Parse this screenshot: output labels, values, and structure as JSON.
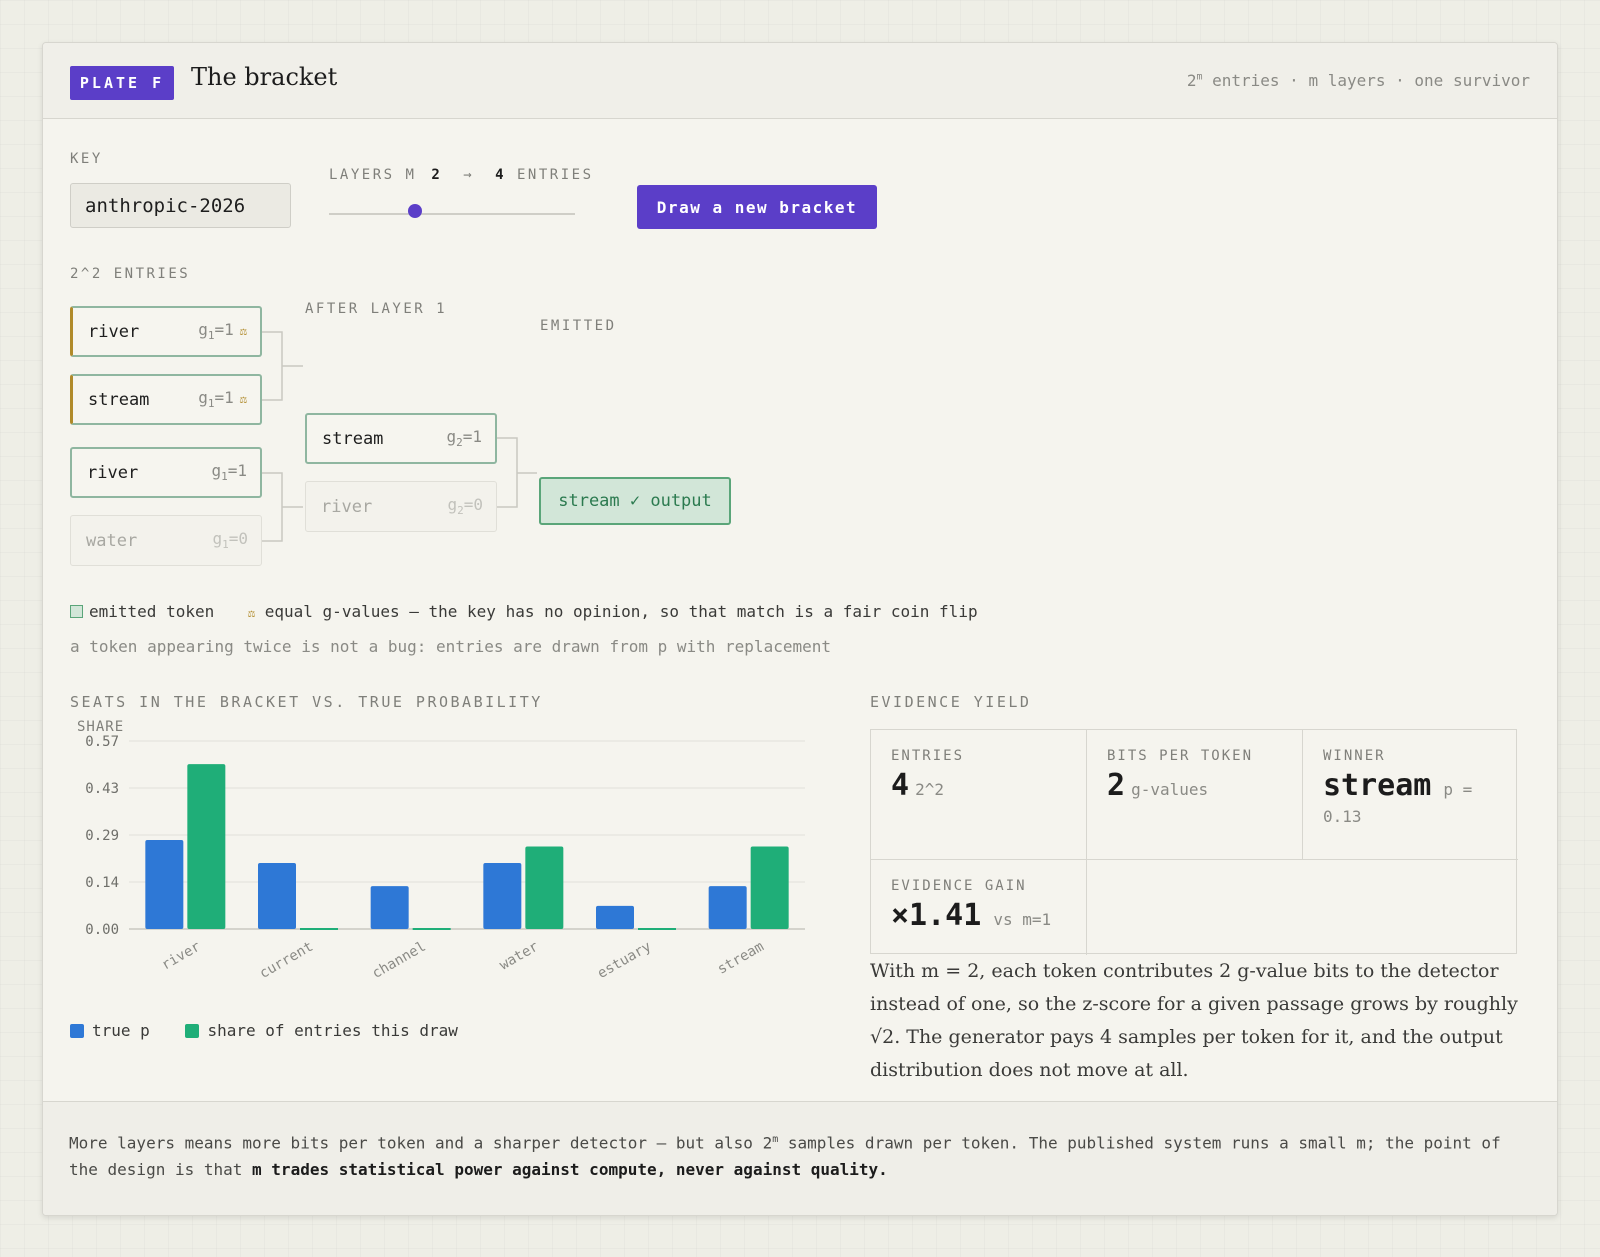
{
  "header": {
    "plate": "PLATE F",
    "title": "The bracket",
    "note_base": "2",
    "note_sup": "m",
    "note_rest": " entries · m layers · one survivor"
  },
  "controls": {
    "key_label": "KEY",
    "key_value": "anthropic-2026",
    "layers_label": "LAYERS M",
    "layers_value": "2",
    "arrow": "→",
    "entries_value": "4",
    "entries_label": "ENTRIES",
    "slider_value": 2,
    "draw_button": "Draw a new bracket"
  },
  "bracket": {
    "col1_label": "2^2 ENTRIES",
    "col2_label": "AFTER LAYER 1",
    "col3_label": "EMITTED",
    "layer1": [
      {
        "token": "river",
        "g": "g",
        "sub": "1",
        "val": "=1",
        "tie": "⚖"
      },
      {
        "token": "stream",
        "g": "g",
        "sub": "1",
        "val": "=1",
        "tie": "⚖"
      },
      {
        "token": "river",
        "g": "g",
        "sub": "1",
        "val": "=1"
      },
      {
        "token": "water",
        "g": "g",
        "sub": "1",
        "val": "=0"
      }
    ],
    "layer2": [
      {
        "token": "stream",
        "g": "g",
        "sub": "2",
        "val": "=1"
      },
      {
        "token": "river",
        "g": "g",
        "sub": "2",
        "val": "=0"
      }
    ],
    "winner": "stream ✓ output"
  },
  "legend": {
    "emitted": "emitted token",
    "tie_icon": "⚖",
    "tie_text": "equal g-values — the key has no opinion, so that match is a fair coin flip",
    "note": "a token appearing twice is not a bug: entries are drawn from p with replacement"
  },
  "chart_title": "SEATS IN THE BRACKET VS. TRUE PROBABILITY",
  "chart_data": {
    "type": "bar",
    "ylabel": "SHARE",
    "ylim": [
      0,
      0.57
    ],
    "yticks": [
      "0.57",
      "0.43",
      "0.29",
      "0.14",
      "0.00"
    ],
    "categories": [
      "river",
      "current",
      "channel",
      "water",
      "estuary",
      "stream"
    ],
    "series": [
      {
        "name": "true p",
        "color": "#2e78d6",
        "values": [
          0.27,
          0.2,
          0.13,
          0.2,
          0.07,
          0.13
        ]
      },
      {
        "name": "share of entries this draw",
        "color": "#1fae78",
        "values": [
          0.5,
          0.0,
          0.0,
          0.25,
          0.0,
          0.25
        ]
      }
    ],
    "grid": true,
    "legend": "bottom-left"
  },
  "evidence": {
    "title": "EVIDENCE YIELD",
    "entries_label": "ENTRIES",
    "entries_value": "4",
    "entries_note": "2^2",
    "bits_label": "BITS PER TOKEN",
    "bits_value": "2",
    "bits_note": "g-values",
    "winner_label": "WINNER",
    "winner_value": "stream",
    "winner_note": "p =",
    "winner_p": "0.13",
    "gain_label": "EVIDENCE GAIN",
    "gain_value": "×1.41",
    "gain_note": "vs m=1",
    "explanation": "With m = 2, each token contributes 2 g-value bits to the detector instead of one, so the z-score for a given passage grows by roughly √2. The generator pays 4 samples per token for it, and the output distribution does not move at all."
  },
  "footer": {
    "text1": "More layers means more bits per token and a sharper detector — but also 2",
    "sup": "m",
    "text2": " samples drawn per token. The published system runs a small m; the point of the design is that ",
    "bold": "m trades statistical power against compute, never against quality."
  }
}
